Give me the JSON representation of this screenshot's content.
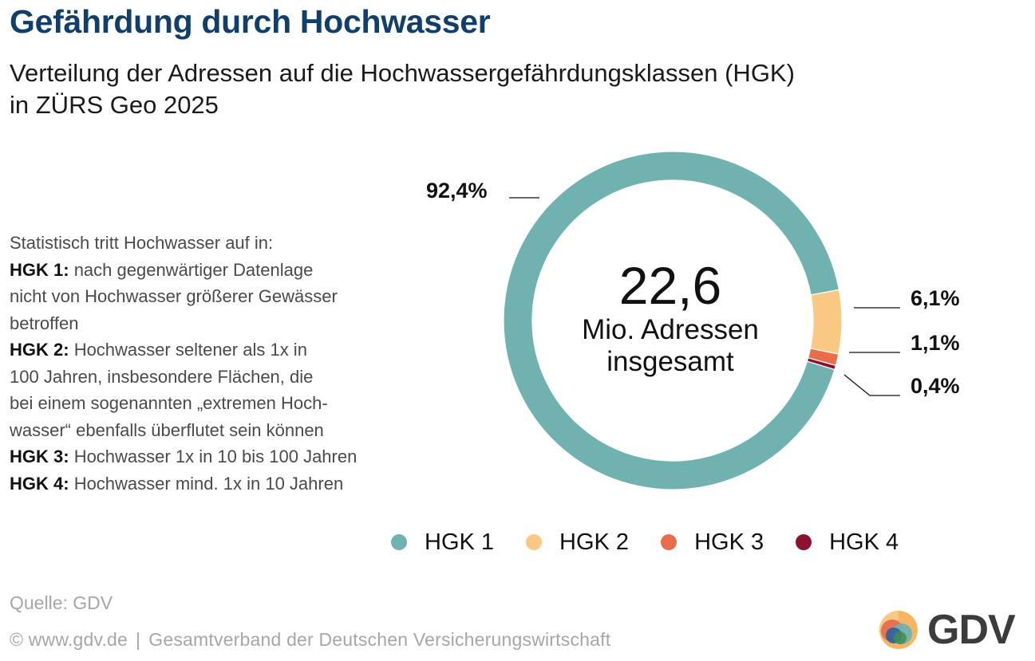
{
  "title": "Gefährdung durch Hochwasser",
  "subtitle": {
    "line1": "Verteilung der Adressen auf die Hochwassergefährdungsklassen (HGK)",
    "line2": "in ZÜRS Geo 2025"
  },
  "notes": {
    "intro": "Statistisch tritt Hochwasser auf in:",
    "hgk1_label": "HGK 1:",
    "hgk1_text_1": "nach gegenwärtiger Datenlage",
    "hgk1_text_2": "nicht von Hochwasser größerer Gewässer",
    "hgk1_text_3": "betroffen",
    "hgk2_label": "HGK 2:",
    "hgk2_text_1": "Hochwasser seltener als 1x in",
    "hgk2_text_2": "100 Jahren, insbesondere Flächen, die",
    "hgk2_text_3": "bei einem sogenannten „extremen Hoch-",
    "hgk2_text_4": "wasser“ ebenfalls überflutet sein können",
    "hgk3_label": "HGK 3:",
    "hgk3_text": "Hochwasser 1x in 10 bis 100 Jahren",
    "hgk4_label": "HGK 4:",
    "hgk4_text": "Hochwasser mind. 1x in 10 Jahren"
  },
  "center": {
    "value": "22,6",
    "label_line1": "Mio. Adressen",
    "label_line2": "insgesamt"
  },
  "chart_data": {
    "type": "pie",
    "donut": true,
    "categories": [
      "HGK 1",
      "HGK 2",
      "HGK 3",
      "HGK 4"
    ],
    "values": [
      92.4,
      6.1,
      1.1,
      0.4
    ],
    "unit": "%",
    "data_labels": [
      "92,4%",
      "6,1%",
      "1,1%",
      "0,4%"
    ],
    "colors": [
      "#70b2b0",
      "#f9c883",
      "#e86e4b",
      "#8c1230"
    ],
    "legend_position": "bottom"
  },
  "source": "Quelle: GDV",
  "footer": {
    "website": "© www.gdv.de",
    "separator": "|",
    "organization": "Gesamtverband der Deutschen Versicherungswirtschaft"
  },
  "logo": {
    "text": "GDV"
  }
}
